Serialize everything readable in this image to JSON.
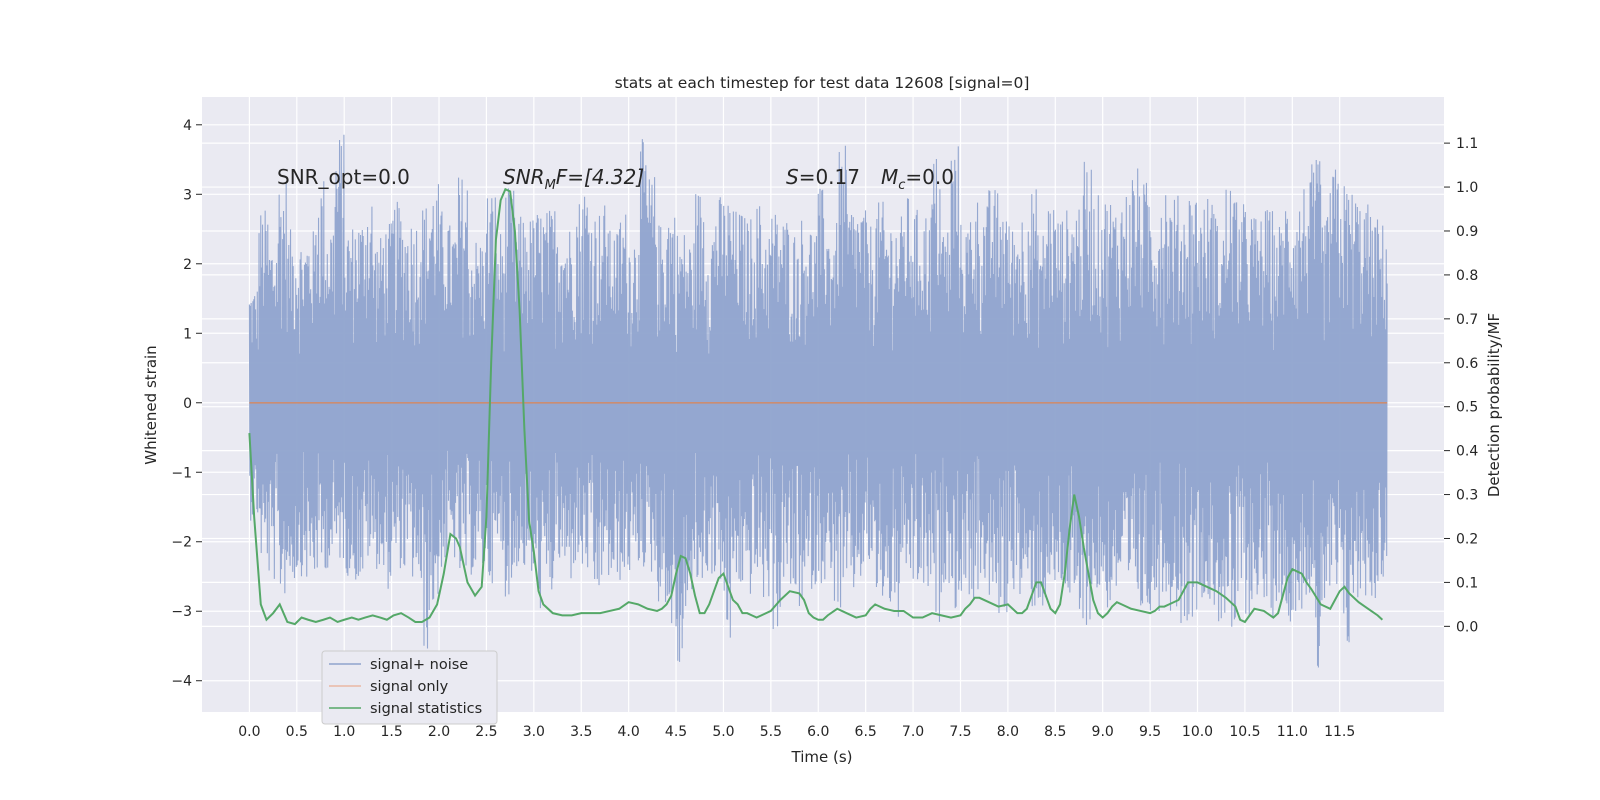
{
  "chart_data": {
    "type": "line",
    "title": "stats at each timestep for test data 12608 [signal=0]",
    "xlabel": "Time (s)",
    "ylabel": "Whitened strain",
    "y2label": "Detection probability/MF",
    "xlim": [
      -0.5,
      12.6
    ],
    "ylim": [
      -4.45,
      4.4
    ],
    "y2lim": [
      -0.195,
      1.205
    ],
    "grid": true,
    "legend_position": "lower-left",
    "x_ticks": [
      0.0,
      0.5,
      1.0,
      1.5,
      2.0,
      2.5,
      3.0,
      3.5,
      4.0,
      4.5,
      5.0,
      5.5,
      6.0,
      6.5,
      7.0,
      7.5,
      8.0,
      8.5,
      9.0,
      9.5,
      10.0,
      10.5,
      11.0,
      11.5
    ],
    "x_tick_labels": [
      "0.0",
      "0.5",
      "1.0",
      "1.5",
      "2.0",
      "2.5",
      "3.0",
      "3.5",
      "4.0",
      "4.5",
      "5.0",
      "5.5",
      "6.0",
      "6.5",
      "7.0",
      "7.5",
      "8.0",
      "8.5",
      "9.0",
      "9.5",
      "10.0",
      "10.5",
      "11.0",
      "11.5"
    ],
    "y_ticks": [
      -4,
      -3,
      -2,
      -1,
      0,
      1,
      2,
      3,
      4
    ],
    "y_tick_labels": [
      "−4",
      "−3",
      "−2",
      "−1",
      "0",
      "1",
      "2",
      "3",
      "4"
    ],
    "y2_ticks": [
      0.0,
      0.1,
      0.2,
      0.3,
      0.4,
      0.5,
      0.6,
      0.7,
      0.8,
      0.9,
      1.0,
      1.1
    ],
    "y2_tick_labels": [
      "0.0",
      "0.1",
      "0.2",
      "0.3",
      "0.4",
      "0.5",
      "0.6",
      "0.7",
      "0.8",
      "0.9",
      "1.0",
      "1.1"
    ],
    "annotations": {
      "snr_opt": "SNR_opt=0.0",
      "snr_mf_main": "SNR",
      "snr_mf_sub": "M",
      "snr_mf_rest": "F=[4.32]",
      "s_sym": "S",
      "s_rest": "=0.17",
      "mc_main": "M",
      "mc_sub": "c",
      "mc_rest": "=0.0"
    },
    "series": [
      {
        "name": "signal+ noise",
        "axis": "left",
        "color": "#8fa3cd",
        "x_range": [
          0.0,
          12.0
        ],
        "envelope_max": [
          1.7,
          2.8,
          2.4,
          3.3,
          2.5,
          2.4,
          2.5,
          3.3,
          2.7,
          3.9,
          2.6,
          2.7,
          3.1,
          2.4,
          2.6,
          2.9,
          2.7,
          2.7,
          2.9,
          3.2,
          2.8,
          2.6,
          3.3,
          2.4,
          2.4,
          3.1,
          2.5,
          3.1,
          2.7,
          2.7,
          2.8,
          2.8,
          2.9,
          2.6,
          3.0,
          3.2,
          2.8,
          2.9,
          2.5,
          2.8,
          2.5,
          3.8,
          3.3,
          2.6,
          2.9,
          2.5,
          2.4,
          3.1,
          2.6,
          3.0,
          3.0,
          2.8,
          2.7,
          2.9,
          2.6,
          2.8,
          2.7,
          2.5,
          2.7,
          2.6,
          3.1,
          2.6,
          3.7,
          2.9,
          2.9,
          2.6,
          2.9,
          2.7,
          2.7,
          3.0,
          2.8,
          2.8,
          3.6,
          2.6,
          3.8,
          2.6,
          3.0,
          2.9,
          3.1,
          3.0,
          2.6,
          2.8,
          3.1,
          2.5,
          3.0,
          2.7,
          2.8,
          3.0,
          3.5,
          3.0,
          3.0,
          2.9,
          3.1,
          3.4,
          3.2,
          2.9,
          3.3,
          3.0,
          2.9,
          3.1,
          2.9,
          3.0,
          2.6,
          3.2,
          2.9,
          2.8,
          2.7,
          2.8,
          2.6,
          3.0,
          3.0,
          3.2,
          3.5,
          2.7,
          3.4,
          3.2,
          3.1,
          2.9,
          2.7,
          2.6
        ],
        "envelope_min": [
          -1.7,
          -2.3,
          -2.6,
          -2.8,
          -2.6,
          -2.5,
          -2.6,
          -2.5,
          -2.4,
          -2.3,
          -2.5,
          -2.6,
          -2.3,
          -2.4,
          -2.7,
          -2.4,
          -2.5,
          -2.6,
          -3.6,
          -3.0,
          -2.4,
          -2.3,
          -2.6,
          -2.5,
          -2.5,
          -2.6,
          -2.3,
          -2.8,
          -2.4,
          -2.6,
          -3.0,
          -2.9,
          -2.4,
          -2.6,
          -2.4,
          -2.5,
          -2.9,
          -2.6,
          -2.7,
          -2.6,
          -2.5,
          -2.4,
          -2.5,
          -2.9,
          -3.3,
          -4.0,
          -3.0,
          -2.7,
          -2.5,
          -2.6,
          -3.6,
          -2.7,
          -2.8,
          -2.6,
          -2.9,
          -3.3,
          -2.6,
          -2.9,
          -3.0,
          -2.7,
          -2.6,
          -2.9,
          -3.1,
          -2.8,
          -2.6,
          -2.4,
          -2.9,
          -3.0,
          -3.2,
          -2.6,
          -2.7,
          -2.8,
          -3.2,
          -2.6,
          -3.0,
          -2.8,
          -2.9,
          -2.6,
          -3.0,
          -3.1,
          -2.7,
          -2.9,
          -3.0,
          -3.0,
          -2.8,
          -2.7,
          -2.9,
          -3.4,
          -3.2,
          -2.8,
          -3.0,
          -2.8,
          -3.0,
          -2.9,
          -3.1,
          -3.0,
          -2.8,
          -3.0,
          -3.2,
          -3.1,
          -2.8,
          -3.0,
          -3.2,
          -3.5,
          -3.0,
          -3.1,
          -2.8,
          -3.1,
          -2.9,
          -3.2,
          -3.0,
          -2.8,
          -4.1,
          -3.0,
          -2.9,
          -3.6,
          -3.0,
          -2.8,
          -2.9,
          -2.6
        ]
      },
      {
        "name": "signal only",
        "axis": "left",
        "color": "#dd8452",
        "x": [
          0.0,
          12.0
        ],
        "y": [
          0.0,
          0.0
        ]
      },
      {
        "name": "signal statistics",
        "axis": "right",
        "color": "#55a868",
        "x": [
          0.0,
          0.05,
          0.12,
          0.18,
          0.25,
          0.32,
          0.4,
          0.48,
          0.55,
          0.62,
          0.7,
          0.78,
          0.85,
          0.93,
          1.0,
          1.08,
          1.15,
          1.22,
          1.3,
          1.38,
          1.45,
          1.52,
          1.6,
          1.68,
          1.75,
          1.82,
          1.9,
          1.98,
          2.05,
          2.12,
          2.18,
          2.22,
          2.3,
          2.38,
          2.45,
          2.5,
          2.55,
          2.6,
          2.65,
          2.7,
          2.75,
          2.8,
          2.85,
          2.9,
          2.95,
          3.0,
          3.05,
          3.1,
          3.2,
          3.3,
          3.4,
          3.5,
          3.6,
          3.7,
          3.8,
          3.9,
          4.0,
          4.1,
          4.2,
          4.3,
          4.35,
          4.4,
          4.45,
          4.5,
          4.55,
          4.6,
          4.65,
          4.7,
          4.75,
          4.8,
          4.85,
          4.9,
          4.95,
          5.0,
          5.05,
          5.1,
          5.15,
          5.2,
          5.25,
          5.3,
          5.35,
          5.4,
          5.5,
          5.6,
          5.7,
          5.8,
          5.85,
          5.9,
          5.95,
          6.0,
          6.05,
          6.1,
          6.2,
          6.3,
          6.4,
          6.5,
          6.55,
          6.6,
          6.7,
          6.8,
          6.9,
          7.0,
          7.05,
          7.1,
          7.2,
          7.3,
          7.4,
          7.5,
          7.55,
          7.6,
          7.65,
          7.7,
          7.8,
          7.9,
          8.0,
          8.05,
          8.1,
          8.15,
          8.2,
          8.25,
          8.3,
          8.35,
          8.4,
          8.45,
          8.5,
          8.55,
          8.6,
          8.65,
          8.7,
          8.75,
          8.8,
          8.85,
          8.9,
          8.95,
          9.0,
          9.05,
          9.1,
          9.15,
          9.2,
          9.3,
          9.4,
          9.5,
          9.55,
          9.6,
          9.65,
          9.7,
          9.8,
          9.9,
          10.0,
          10.1,
          10.2,
          10.3,
          10.4,
          10.45,
          10.5,
          10.55,
          10.6,
          10.7,
          10.8,
          10.85,
          10.9,
          10.95,
          11.0,
          11.05,
          11.1,
          11.15,
          11.2,
          11.3,
          11.4,
          11.5,
          11.55,
          11.6,
          11.7,
          11.8,
          11.9,
          11.95
        ],
        "y": [
          0.44,
          0.25,
          0.05,
          0.015,
          0.03,
          0.05,
          0.01,
          0.005,
          0.02,
          0.015,
          0.01,
          0.015,
          0.02,
          0.01,
          0.015,
          0.02,
          0.015,
          0.02,
          0.025,
          0.02,
          0.015,
          0.025,
          0.03,
          0.02,
          0.01,
          0.01,
          0.02,
          0.05,
          0.12,
          0.21,
          0.2,
          0.18,
          0.1,
          0.07,
          0.09,
          0.25,
          0.6,
          0.88,
          0.97,
          0.995,
          0.99,
          0.9,
          0.72,
          0.45,
          0.24,
          0.17,
          0.08,
          0.05,
          0.03,
          0.025,
          0.025,
          0.03,
          0.03,
          0.03,
          0.035,
          0.04,
          0.055,
          0.05,
          0.04,
          0.035,
          0.04,
          0.05,
          0.07,
          0.12,
          0.16,
          0.155,
          0.12,
          0.07,
          0.03,
          0.03,
          0.05,
          0.08,
          0.11,
          0.12,
          0.09,
          0.06,
          0.05,
          0.03,
          0.03,
          0.025,
          0.02,
          0.025,
          0.035,
          0.06,
          0.08,
          0.075,
          0.06,
          0.03,
          0.02,
          0.015,
          0.015,
          0.025,
          0.04,
          0.03,
          0.02,
          0.025,
          0.04,
          0.05,
          0.04,
          0.035,
          0.035,
          0.02,
          0.02,
          0.02,
          0.03,
          0.025,
          0.02,
          0.025,
          0.04,
          0.05,
          0.065,
          0.065,
          0.055,
          0.045,
          0.05,
          0.04,
          0.03,
          0.03,
          0.04,
          0.07,
          0.1,
          0.1,
          0.07,
          0.04,
          0.03,
          0.05,
          0.12,
          0.22,
          0.3,
          0.25,
          0.18,
          0.12,
          0.06,
          0.03,
          0.02,
          0.03,
          0.045,
          0.055,
          0.05,
          0.04,
          0.035,
          0.03,
          0.035,
          0.045,
          0.045,
          0.05,
          0.06,
          0.1,
          0.1,
          0.09,
          0.08,
          0.065,
          0.045,
          0.015,
          0.01,
          0.025,
          0.04,
          0.035,
          0.02,
          0.03,
          0.07,
          0.11,
          0.13,
          0.125,
          0.12,
          0.1,
          0.085,
          0.05,
          0.04,
          0.08,
          0.09,
          0.075,
          0.055,
          0.04,
          0.025,
          0.015
        ]
      }
    ]
  }
}
